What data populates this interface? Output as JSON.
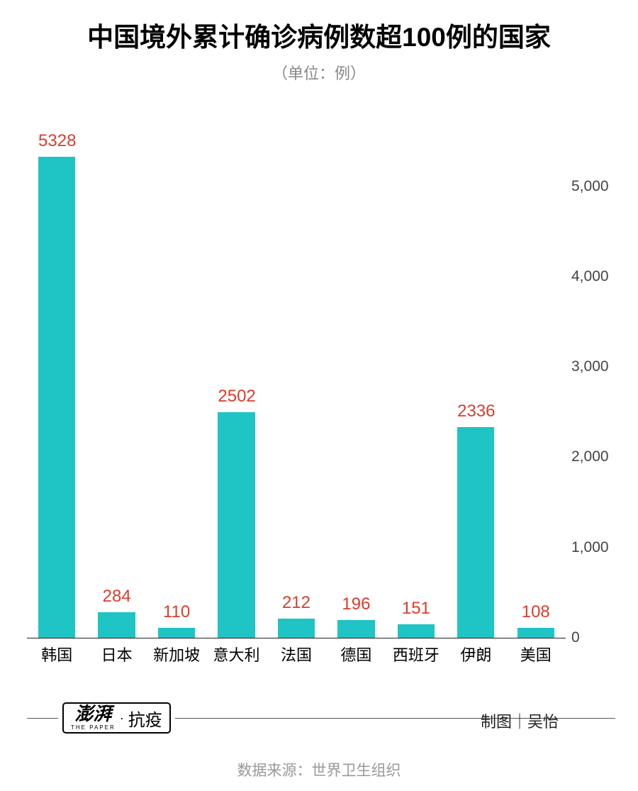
{
  "title": {
    "text": "中国境外累计确诊病例数超100例的国家",
    "fontsize": 37,
    "color": "#000000"
  },
  "subtitle": {
    "text": "（单位：例）",
    "fontsize": 22,
    "color": "#888888"
  },
  "chart": {
    "type": "bar",
    "categories": [
      "韩国",
      "日本",
      "新加坡",
      "意大利",
      "法国",
      "德国",
      "西班牙",
      "伊朗",
      "美国"
    ],
    "values": [
      5328,
      284,
      110,
      2502,
      212,
      196,
      151,
      2336,
      108
    ],
    "bar_color": "#1fc4c4",
    "value_label_color": "#e13b2a",
    "value_label_fontsize": 24,
    "xlabel_fontsize": 22,
    "xlabel_color": "#000000",
    "ytick_values": [
      0,
      1000,
      2000,
      3000,
      4000,
      5000
    ],
    "ytick_labels": [
      "0",
      "1,000",
      "2,000",
      "3,000",
      "4,000",
      "5,000"
    ],
    "ytick_fontsize": 21,
    "ytick_color": "#444444",
    "ymax": 5500,
    "background_color": "#ffffff",
    "axis_color": "#222222",
    "bar_width_ratio": 0.62
  },
  "footer": {
    "badge_brand": "澎湃",
    "badge_sub": "THE PAPER",
    "badge_dot": "·",
    "badge_right": "抗疫",
    "credit": "制图｜吴怡",
    "credit_fontsize": 22,
    "line_color": "#555555"
  },
  "source": {
    "text": "数据来源：世界卫生组织",
    "fontsize": 21,
    "color": "#999999"
  }
}
